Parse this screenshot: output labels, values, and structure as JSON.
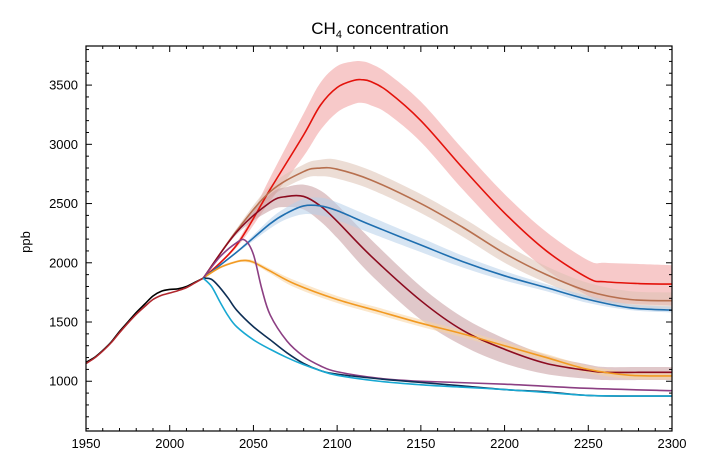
{
  "chart_data": {
    "type": "line",
    "title_main": "CH",
    "title_sub": "4",
    "title_rest": " concentration",
    "xlabel": "",
    "ylabel": "ppb",
    "xlim": [
      1950,
      2300
    ],
    "ylim": [
      580,
      3830
    ],
    "x_ticks": [
      1950,
      2000,
      2050,
      2100,
      2150,
      2200,
      2250,
      2300
    ],
    "y_ticks": [
      1000,
      1500,
      2000,
      2500,
      3000,
      3500
    ],
    "grid": false,
    "legend": "none",
    "historical": [
      {
        "color": "#000000",
        "x": [
          1950,
          1955,
          1960,
          1965,
          1970,
          1975,
          1980,
          1985,
          1990,
          1995,
          2000,
          2005,
          2010,
          2015,
          2020
        ],
        "y": [
          1160,
          1200,
          1260,
          1330,
          1420,
          1500,
          1580,
          1650,
          1720,
          1760,
          1775,
          1780,
          1800,
          1835,
          1870
        ]
      },
      {
        "color": "#b0272d",
        "x": [
          1950,
          1955,
          1960,
          1965,
          1970,
          1975,
          1980,
          1985,
          1990,
          1995,
          2000,
          2005,
          2010,
          2015,
          2020
        ],
        "y": [
          1150,
          1195,
          1255,
          1325,
          1410,
          1490,
          1565,
          1630,
          1690,
          1725,
          1745,
          1765,
          1790,
          1830,
          1870
        ]
      }
    ],
    "series": [
      {
        "color": "#e3120b",
        "band_color": "#f19c9d",
        "x": [
          2020,
          2040,
          2060,
          2080,
          2090,
          2100,
          2110,
          2115,
          2120,
          2130,
          2150,
          2175,
          2200,
          2225,
          2250,
          2260,
          2280,
          2300
        ],
        "y": [
          1870,
          2150,
          2620,
          3080,
          3330,
          3480,
          3540,
          3545,
          3530,
          3450,
          3200,
          2800,
          2420,
          2100,
          1870,
          1840,
          1825,
          1820
        ],
        "lo": [
          1870,
          2130,
          2520,
          2900,
          3120,
          3270,
          3340,
          3350,
          3330,
          3260,
          3020,
          2620,
          2250,
          1940,
          1720,
          1670,
          1650,
          1640
        ],
        "hi": [
          1870,
          2170,
          2720,
          3260,
          3520,
          3660,
          3700,
          3700,
          3680,
          3600,
          3360,
          2960,
          2580,
          2260,
          2020,
          2000,
          1990,
          1980
        ]
      },
      {
        "color": "#b7704f",
        "band_color": "#dcc1b2",
        "x": [
          2020,
          2040,
          2060,
          2080,
          2090,
          2100,
          2120,
          2150,
          2175,
          2200,
          2225,
          2250,
          2275,
          2300
        ],
        "y": [
          1870,
          2270,
          2600,
          2770,
          2800,
          2790,
          2700,
          2500,
          2300,
          2080,
          1900,
          1760,
          1690,
          1680
        ],
        "lo": [
          1870,
          2250,
          2550,
          2710,
          2730,
          2710,
          2620,
          2420,
          2220,
          2000,
          1830,
          1690,
          1620,
          1610
        ],
        "hi": [
          1870,
          2290,
          2650,
          2830,
          2870,
          2870,
          2780,
          2580,
          2380,
          2160,
          1970,
          1830,
          1760,
          1750
        ]
      },
      {
        "color": "#8c0b1f",
        "band_color": "#c79a9f",
        "x": [
          2020,
          2040,
          2060,
          2070,
          2080,
          2090,
          2100,
          2120,
          2150,
          2175,
          2200,
          2225,
          2250,
          2260,
          2280,
          2300
        ],
        "y": [
          1870,
          2260,
          2510,
          2560,
          2560,
          2480,
          2350,
          2060,
          1680,
          1430,
          1270,
          1150,
          1090,
          1075,
          1075,
          1075
        ],
        "lo": [
          1870,
          2240,
          2440,
          2470,
          2450,
          2350,
          2210,
          1900,
          1520,
          1300,
          1150,
          1060,
          1020,
          1010,
          1010,
          1010
        ],
        "hi": [
          1870,
          2280,
          2580,
          2640,
          2660,
          2610,
          2490,
          2200,
          1800,
          1540,
          1360,
          1220,
          1140,
          1120,
          1120,
          1120
        ]
      },
      {
        "color": "#1f6fb0",
        "band_color": "#b7cfe9",
        "x": [
          2020,
          2040,
          2060,
          2070,
          2080,
          2090,
          2100,
          2120,
          2150,
          2175,
          2200,
          2225,
          2250,
          2275,
          2300
        ],
        "y": [
          1870,
          2090,
          2330,
          2420,
          2480,
          2480,
          2440,
          2320,
          2150,
          2010,
          1890,
          1790,
          1690,
          1620,
          1600
        ],
        "lo": [
          1870,
          2080,
          2290,
          2370,
          2410,
          2400,
          2360,
          2250,
          2090,
          1960,
          1850,
          1760,
          1660,
          1600,
          1580
        ],
        "hi": [
          1870,
          2100,
          2370,
          2470,
          2540,
          2550,
          2510,
          2390,
          2210,
          2060,
          1930,
          1820,
          1720,
          1650,
          1630
        ]
      },
      {
        "color": "#f29a22",
        "band_color": "#f8d3a0",
        "x": [
          2020,
          2030,
          2040,
          2045,
          2050,
          2060,
          2075,
          2100,
          2125,
          2150,
          2175,
          2200,
          2225,
          2250,
          2275,
          2300
        ],
        "y": [
          1870,
          1960,
          2010,
          2020,
          2005,
          1930,
          1820,
          1690,
          1590,
          1490,
          1400,
          1300,
          1200,
          1100,
          1050,
          1045
        ],
        "lo": [
          1870,
          1950,
          2000,
          2005,
          1990,
          1910,
          1790,
          1660,
          1560,
          1460,
          1370,
          1270,
          1170,
          1070,
          1020,
          1015
        ],
        "hi": [
          1870,
          1970,
          2020,
          2030,
          2020,
          1950,
          1850,
          1720,
          1620,
          1520,
          1430,
          1330,
          1230,
          1130,
          1080,
          1075
        ]
      },
      {
        "color": "#8c3f83",
        "band_color": null,
        "x": [
          2020,
          2030,
          2040,
          2045,
          2050,
          2055,
          2060,
          2070,
          2080,
          2090,
          2100,
          2125,
          2150,
          2200,
          2250,
          2300
        ],
        "y": [
          1870,
          2050,
          2170,
          2190,
          2070,
          1780,
          1560,
          1340,
          1210,
          1130,
          1080,
          1025,
          1000,
          975,
          940,
          920
        ],
        "lo": null,
        "hi": null
      },
      {
        "color": "#0e2f55",
        "band_color": null,
        "x": [
          2020,
          2025,
          2030,
          2035,
          2040,
          2050,
          2060,
          2070,
          2080,
          2090,
          2100,
          2125,
          2150,
          2175,
          2200,
          2225,
          2250,
          2275,
          2300
        ],
        "y": [
          1870,
          1860,
          1790,
          1700,
          1600,
          1460,
          1350,
          1240,
          1150,
          1090,
          1060,
          1020,
          990,
          960,
          930,
          910,
          880,
          875,
          875
        ],
        "lo": null,
        "hi": null
      },
      {
        "color": "#18a8d2",
        "band_color": null,
        "x": [
          2020,
          2025,
          2030,
          2035,
          2040,
          2050,
          2060,
          2070,
          2080,
          2090,
          2100,
          2125,
          2150,
          2175,
          2200,
          2225,
          2250,
          2275,
          2300
        ],
        "y": [
          1870,
          1800,
          1670,
          1550,
          1460,
          1350,
          1270,
          1200,
          1140,
          1090,
          1050,
          1000,
          970,
          950,
          930,
          905,
          880,
          875,
          875
        ],
        "lo": null,
        "hi": null
      }
    ]
  }
}
